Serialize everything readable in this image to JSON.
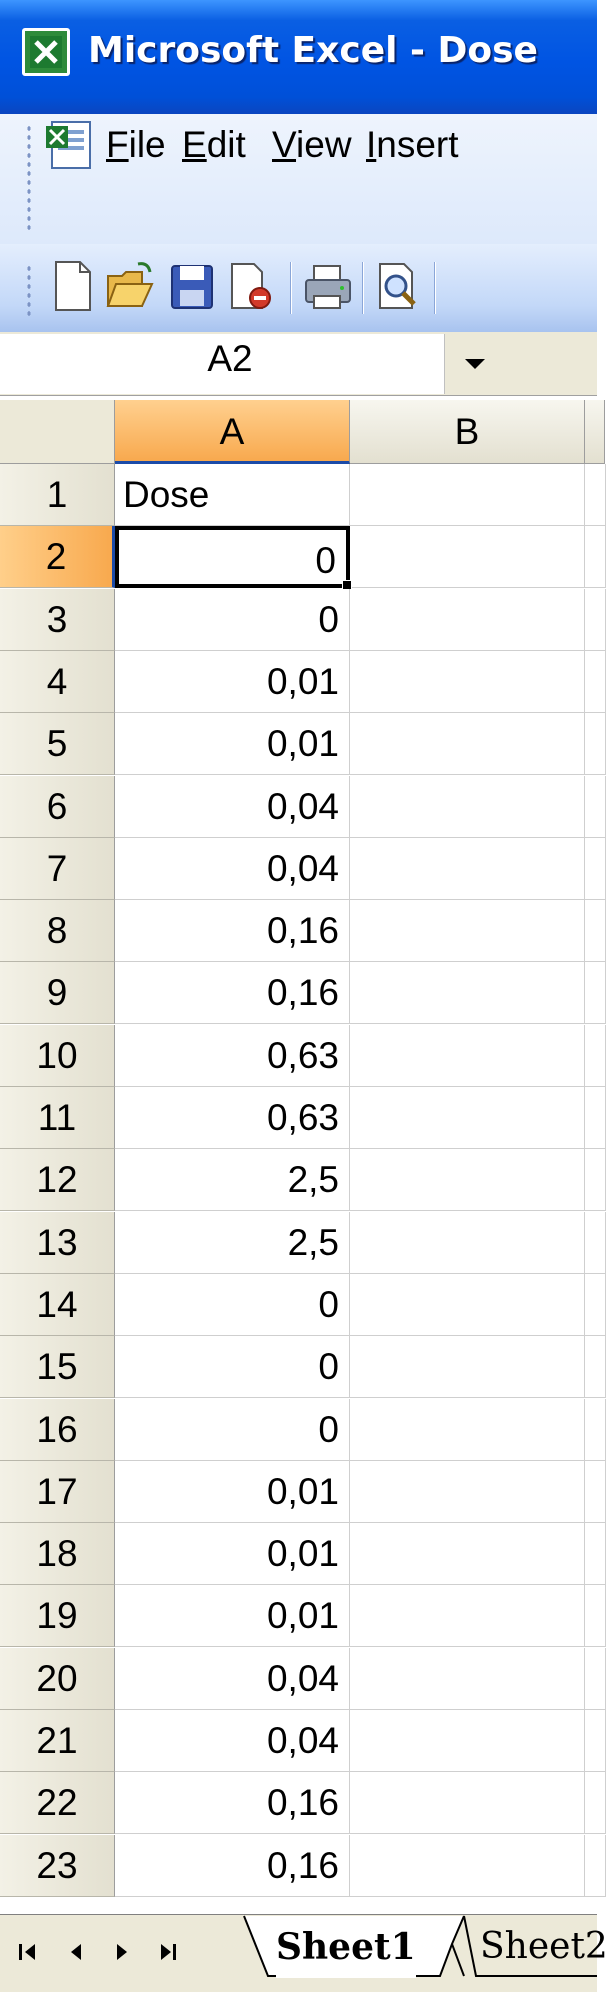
{
  "window": {
    "title": "Microsoft Excel - Dose"
  },
  "menu": {
    "items": [
      {
        "label": "File",
        "accel": "F",
        "rest": "ile"
      },
      {
        "label": "Edit",
        "accel": "E",
        "rest": "dit"
      },
      {
        "label": "View",
        "accel": "V",
        "rest": "iew"
      },
      {
        "label": "Insert",
        "accel": "I",
        "rest": "nsert"
      }
    ]
  },
  "toolbar": {
    "buttons": [
      "new-icon",
      "open-icon",
      "save-icon",
      "permission-icon",
      "print-icon",
      "print-preview-icon"
    ]
  },
  "namebox": {
    "value": "A2"
  },
  "columns": [
    "A",
    "B"
  ],
  "active_column": "A",
  "active_row": "2",
  "rows": [
    {
      "n": "1",
      "a": "Dose"
    },
    {
      "n": "2",
      "a": "0"
    },
    {
      "n": "3",
      "a": "0"
    },
    {
      "n": "4",
      "a": "0,01"
    },
    {
      "n": "5",
      "a": "0,01"
    },
    {
      "n": "6",
      "a": "0,04"
    },
    {
      "n": "7",
      "a": "0,04"
    },
    {
      "n": "8",
      "a": "0,16"
    },
    {
      "n": "9",
      "a": "0,16"
    },
    {
      "n": "10",
      "a": "0,63"
    },
    {
      "n": "11",
      "a": "0,63"
    },
    {
      "n": "12",
      "a": "2,5"
    },
    {
      "n": "13",
      "a": "2,5"
    },
    {
      "n": "14",
      "a": "0"
    },
    {
      "n": "15",
      "a": "0"
    },
    {
      "n": "16",
      "a": "0"
    },
    {
      "n": "17",
      "a": "0,01"
    },
    {
      "n": "18",
      "a": "0,01"
    },
    {
      "n": "19",
      "a": "0,01"
    },
    {
      "n": "20",
      "a": "0,04"
    },
    {
      "n": "21",
      "a": "0,04"
    },
    {
      "n": "22",
      "a": "0,16"
    },
    {
      "n": "23",
      "a": "0,16"
    }
  ],
  "sheets": {
    "tabs": [
      "Sheet1",
      "Sheet2"
    ],
    "active": "Sheet1"
  },
  "colors": {
    "title_blue": "#0054e3",
    "header_highlight": "#f8a94e",
    "header_bg": "#ece9d8"
  }
}
